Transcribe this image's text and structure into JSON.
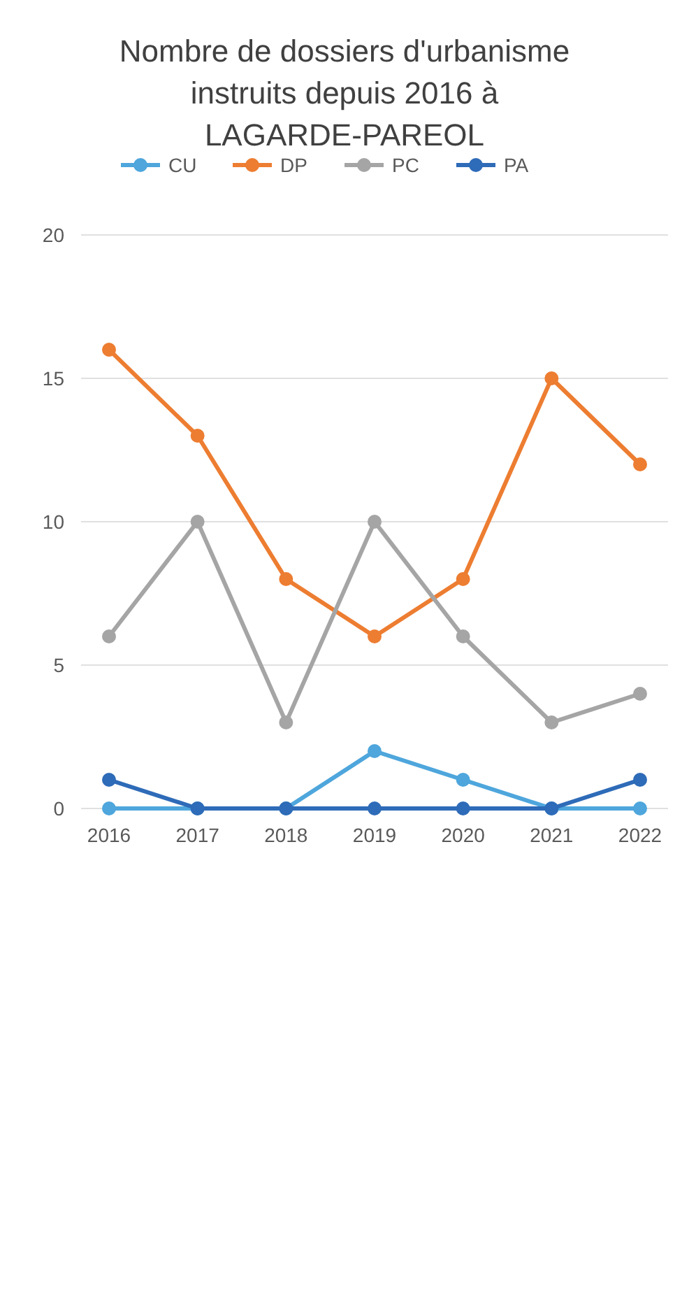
{
  "chart_data": {
    "type": "line",
    "title": "Nombre de dossiers d'urbanisme instruits depuis 2016 à LAGARDE-PAREOL",
    "categories": [
      "2016",
      "2017",
      "2018",
      "2019",
      "2020",
      "2021",
      "2022"
    ],
    "series": [
      {
        "name": "CU",
        "color": "#4ea6dc",
        "values": [
          0,
          0,
          0,
          2,
          1,
          0,
          0
        ]
      },
      {
        "name": "DP",
        "color": "#ed7d31",
        "values": [
          16,
          13,
          8,
          6,
          8,
          15,
          12
        ]
      },
      {
        "name": "PC",
        "color": "#a5a5a5",
        "values": [
          6,
          10,
          3,
          10,
          6,
          3,
          4
        ]
      },
      {
        "name": "PA",
        "color": "#2e6bb8",
        "values": [
          1,
          0,
          0,
          0,
          0,
          0,
          1
        ]
      }
    ],
    "ylim": [
      0,
      20
    ],
    "yticks": [
      0,
      5,
      10,
      15,
      20
    ],
    "grid": "y",
    "legend": "top",
    "marker": "circle",
    "line_style": "solid"
  }
}
